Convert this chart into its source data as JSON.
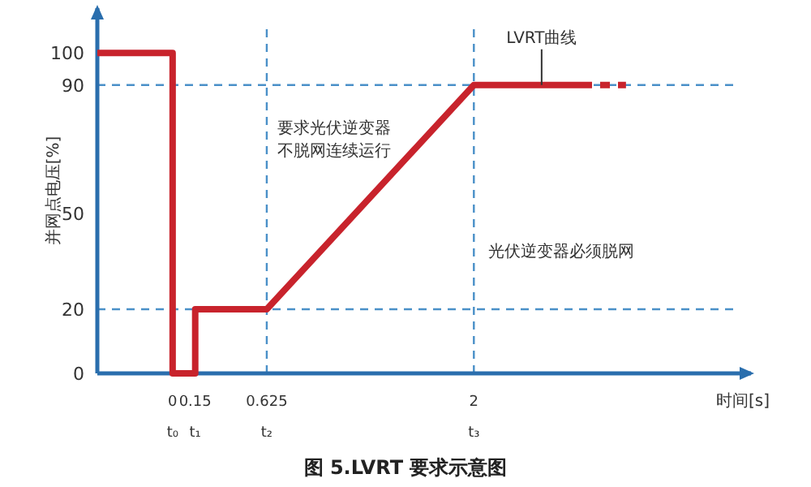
{
  "chart_data": {
    "type": "line",
    "title": "图 5.LVRT 要求示意图",
    "xlabel": "时间[s]",
    "ylabel": "并网点电压[%]",
    "xlim": [
      -0.5,
      3.84
    ],
    "ylim": [
      0,
      114
    ],
    "xticks": [
      {
        "value": 0,
        "label": "0\nt₀"
      },
      {
        "value": 0.15,
        "label": "0.15\nt₁"
      },
      {
        "value": 0.625,
        "label": "0.625\nt₂"
      },
      {
        "value": 2,
        "label": "2\nt₃"
      }
    ],
    "yticks": [
      0,
      20,
      50,
      90,
      100
    ],
    "series": [
      {
        "color": "#c8232c",
        "line_style": "solid",
        "x": [
          -0.5,
          0,
          0,
          0.15,
          0.15,
          0.625,
          2,
          2.72
        ],
        "values": [
          100,
          100,
          0,
          0,
          20,
          20,
          90,
          90
        ]
      },
      {
        "color": "#c8232c",
        "line_style": "dotted",
        "x": [
          2.72,
          3.01
        ],
        "values": [
          90,
          90
        ]
      }
    ],
    "ref_lines": [
      {
        "axis": "y",
        "value": 90,
        "color": "#4a90c8",
        "line_style": "dashed"
      },
      {
        "axis": "y",
        "value": 20,
        "color": "#4a90c8",
        "line_style": "dashed"
      },
      {
        "axis": "x",
        "value": 0.625,
        "color": "#4a90c8",
        "line_style": "dashed"
      },
      {
        "axis": "x",
        "value": 2,
        "color": "#4a90c8",
        "line_style": "dashed"
      }
    ],
    "annotations": [
      "要求光伏逆变器",
      "不脱网连续运行",
      "光伏逆变器必须脱网",
      {
        "text": "LVRT曲线",
        "x": 2.45,
        "y": 90
      }
    ]
  }
}
